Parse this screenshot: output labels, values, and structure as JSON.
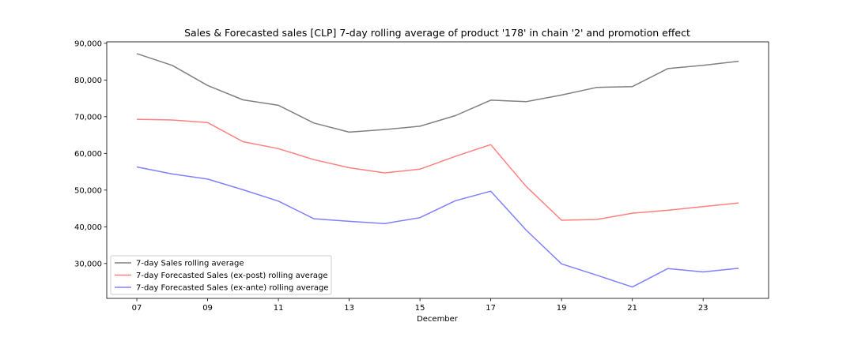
{
  "chart_data": {
    "type": "line",
    "title": "Sales & Forecasted sales [CLP] 7-day rolling average of product '178' in chain '2' and promotion effect",
    "xlabel": "December",
    "ylabel": "",
    "x": [
      7,
      8,
      9,
      10,
      11,
      12,
      13,
      14,
      15,
      16,
      17,
      18,
      19,
      20,
      21,
      22,
      23,
      24
    ],
    "xticks": [
      7,
      9,
      11,
      13,
      15,
      17,
      19,
      21,
      23
    ],
    "xtick_labels": [
      "07",
      "09",
      "11",
      "13",
      "15",
      "17",
      "19",
      "21",
      "23"
    ],
    "xlim": [
      6.15,
      24.85
    ],
    "ylim": [
      20500,
      90400
    ],
    "yticks": [
      30000,
      40000,
      50000,
      60000,
      70000,
      80000,
      90000
    ],
    "ytick_labels": [
      "30,000",
      "40,000",
      "50,000",
      "60,000",
      "70,000",
      "80,000",
      "90,000"
    ],
    "grid": false,
    "legend_position": "bottom-left",
    "series": [
      {
        "name": "7-day Sales rolling average",
        "color": "#808080",
        "values": [
          87200,
          84000,
          78500,
          74600,
          73100,
          68300,
          65800,
          66500,
          67400,
          70300,
          74500,
          74100,
          75900,
          78000,
          78200,
          83100,
          84000,
          85100
        ]
      },
      {
        "name": "7-day Forecasted Sales (ex-post) rolling average",
        "color": "#ff8080",
        "values": [
          69300,
          69100,
          68400,
          63200,
          61300,
          58300,
          56100,
          54700,
          55700,
          59200,
          62400,
          51000,
          41800,
          42000,
          43700,
          44500,
          45500,
          46500
        ]
      },
      {
        "name": "7-day Forecasted Sales (ex-ante) rolling average",
        "color": "#8080ff",
        "values": [
          56300,
          54400,
          53000,
          50100,
          47000,
          42200,
          41500,
          40900,
          42500,
          47100,
          49700,
          39100,
          29900,
          26800,
          23600,
          28600,
          27700,
          28700
        ]
      }
    ]
  }
}
